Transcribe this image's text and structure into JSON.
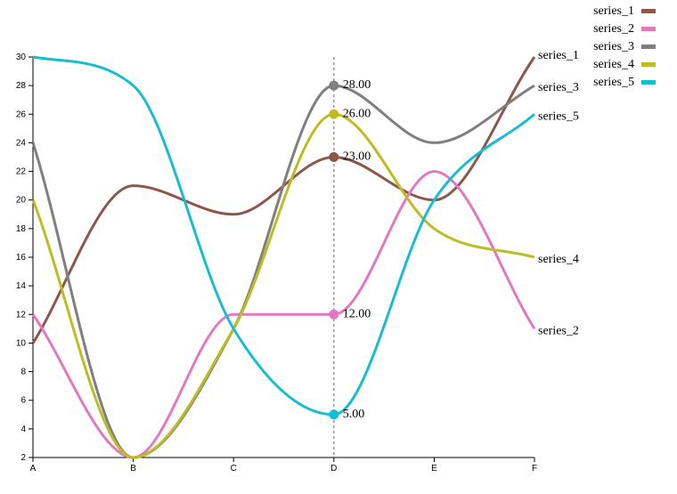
{
  "chart_data": {
    "type": "line",
    "categories": [
      "A",
      "B",
      "C",
      "D",
      "E",
      "F"
    ],
    "ylim": [
      2,
      30
    ],
    "yticks": [
      2,
      4,
      6,
      8,
      10,
      12,
      14,
      16,
      18,
      20,
      22,
      24,
      26,
      28,
      30
    ],
    "grid": false,
    "legend_position": "top-right",
    "series": [
      {
        "name": "series_1",
        "color": "#8c564b",
        "values": [
          10,
          21,
          19,
          23,
          20,
          30
        ]
      },
      {
        "name": "series_2",
        "color": "#e377c2",
        "values": [
          12,
          2,
          12,
          12,
          22,
          11
        ]
      },
      {
        "name": "series_3",
        "color": "#7f7f7f",
        "values": [
          24,
          2,
          11,
          28,
          24,
          28
        ]
      },
      {
        "name": "series_4",
        "color": "#bcbd22",
        "values": [
          20,
          2,
          11,
          26,
          18,
          16
        ]
      },
      {
        "name": "series_5",
        "color": "#17becf",
        "values": [
          30,
          28,
          11,
          5,
          20,
          26
        ]
      }
    ],
    "highlight": {
      "category": "D",
      "labels": [
        "28.00",
        "26.00",
        "23.00",
        "12.00",
        "5.00"
      ]
    }
  }
}
